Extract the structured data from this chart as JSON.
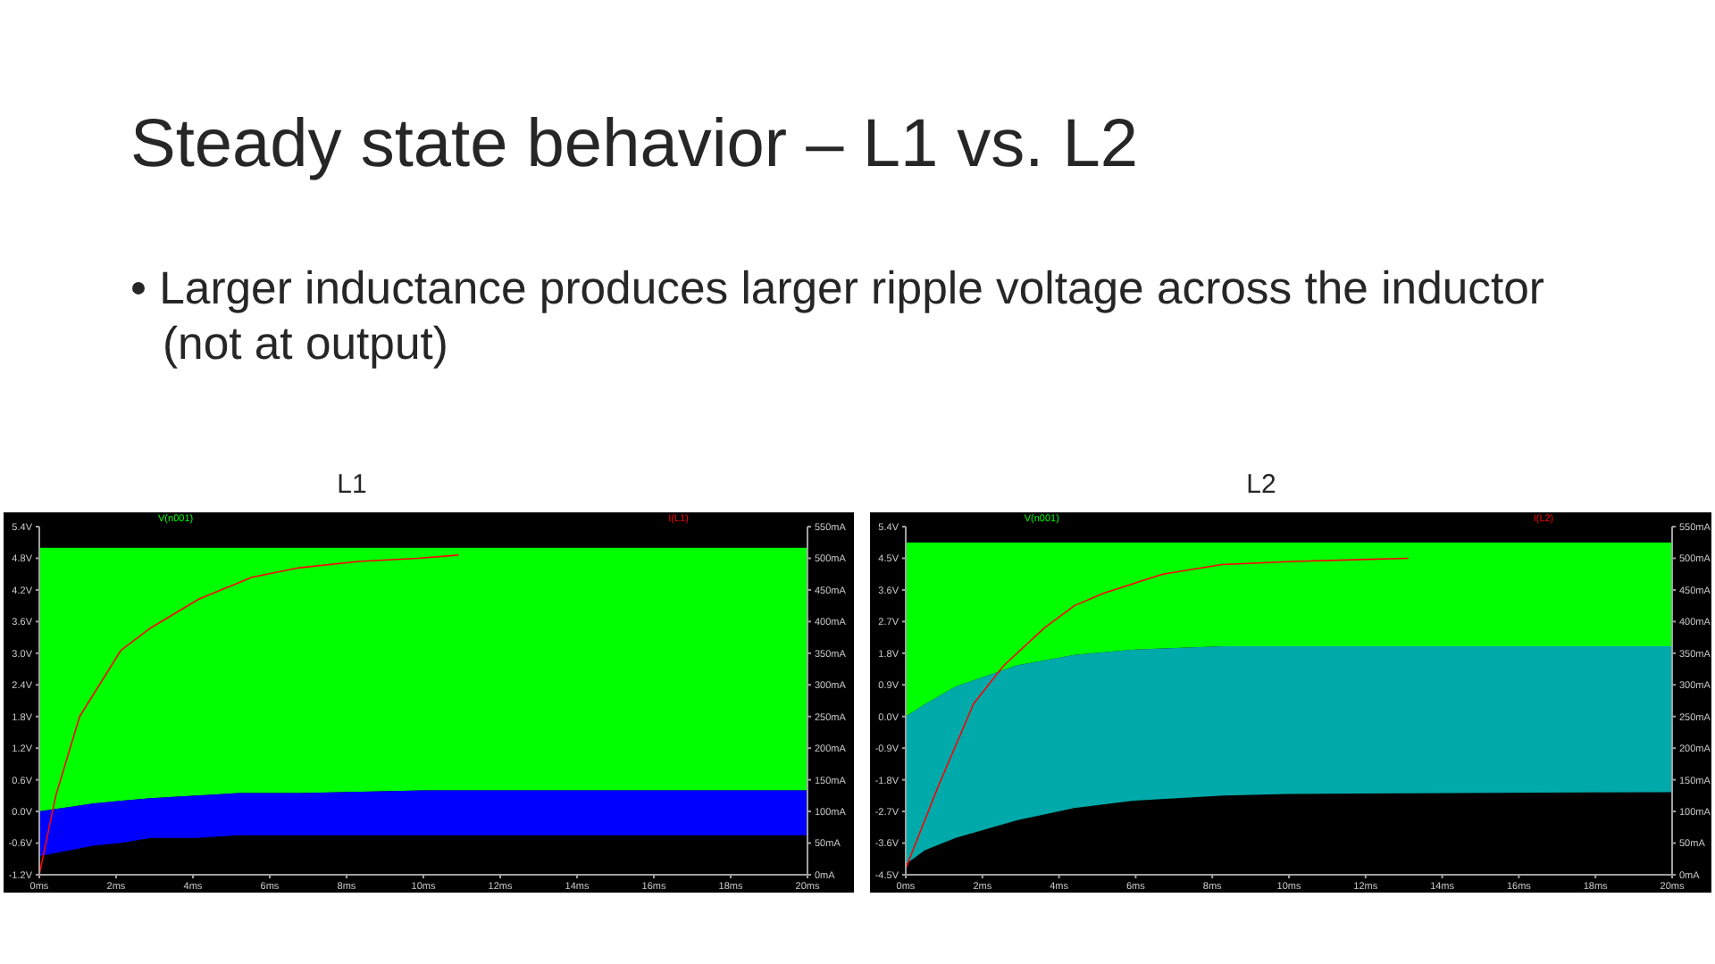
{
  "chart_data": [
    {
      "type": "other",
      "title": "Steady state behavior – L1 vs. L2",
      "annotations": [
        "• Larger inductance produces larger ripple voltage across the inductor (not at output)"
      ]
    },
    {
      "type": "line",
      "title": "L1",
      "legend": "top",
      "xlim": [
        0,
        20
      ],
      "xticks": [
        {
          "value": 0,
          "label": "0ms"
        },
        {
          "value": 2,
          "label": "2ms"
        },
        {
          "value": 4,
          "label": "4ms"
        },
        {
          "value": 6,
          "label": "6ms"
        },
        {
          "value": 8,
          "label": "8ms"
        },
        {
          "value": 10,
          "label": "10ms"
        },
        {
          "value": 12,
          "label": "12ms"
        },
        {
          "value": 14,
          "label": "14ms"
        },
        {
          "value": 16,
          "label": "16ms"
        },
        {
          "value": 18,
          "label": "18ms"
        },
        {
          "value": 20,
          "label": "20ms"
        }
      ],
      "ylim": [
        -1.2,
        5.4
      ],
      "yticks": [
        {
          "value": 5.4,
          "label": "5.4V"
        },
        {
          "value": 4.8,
          "label": "4.8V"
        },
        {
          "value": 4.2,
          "label": "4.2V"
        },
        {
          "value": 3.6,
          "label": "3.6V"
        },
        {
          "value": 3,
          "label": "3.0V"
        },
        {
          "value": 2.4,
          "label": "2.4V"
        },
        {
          "value": 1.8,
          "label": "1.8V"
        },
        {
          "value": 1.2,
          "label": "1.2V"
        },
        {
          "value": 0.6,
          "label": "0.6V"
        },
        {
          "value": 0,
          "label": "0.0V"
        },
        {
          "value": -0.6,
          "label": "-0.6V"
        },
        {
          "value": -1.2,
          "label": "-1.2V"
        }
      ],
      "y2lim": [
        0,
        550
      ],
      "y2ticks": [
        {
          "value": 550,
          "label": "550mA"
        },
        {
          "value": 500,
          "label": "500mA"
        },
        {
          "value": 450,
          "label": "450mA"
        },
        {
          "value": 400,
          "label": "400mA"
        },
        {
          "value": 350,
          "label": "350mA"
        },
        {
          "value": 300,
          "label": "300mA"
        },
        {
          "value": 250,
          "label": "250mA"
        },
        {
          "value": 200,
          "label": "200mA"
        },
        {
          "value": 150,
          "label": "150mA"
        },
        {
          "value": 100,
          "label": "100mA"
        },
        {
          "value": 50,
          "label": "50mA"
        },
        {
          "value": 0,
          "label": "0mA"
        }
      ],
      "series": [
        {
          "name": "V(n001)",
          "color": "#00ff00",
          "x": [
            0,
            1.4,
            2.1,
            2.9,
            4.1,
            5.2,
            6.8,
            10,
            20
          ],
          "values": [
            null,
            null,
            null,
            null,
            null,
            null,
            null,
            null,
            null
          ],
          "lower": [
            0,
            0.15,
            0.2,
            0.25,
            0.3,
            0.35,
            0.35,
            0.4,
            0.4
          ],
          "upper": [
            5,
            5,
            5,
            5,
            5,
            5,
            5,
            5,
            5
          ]
        },
        {
          "color": "#0000ff",
          "x": [
            0,
            1.4,
            2.1,
            2.9,
            4.1,
            5.2,
            6.8,
            10,
            20
          ],
          "values": [
            null,
            null,
            null,
            null,
            null,
            null,
            null,
            null,
            null
          ],
          "lower": [
            -0.85,
            -0.65,
            -0.6,
            -0.5,
            -0.5,
            -0.45,
            -0.45,
            -0.45,
            -0.45
          ],
          "upper": [
            0,
            0.15,
            0.2,
            0.25,
            0.3,
            0.35,
            0.35,
            0.4,
            0.4
          ]
        },
        {
          "name": "I(L1)",
          "color": "#ff0000",
          "axis": "y2",
          "x": [
            0,
            0.43,
            1.05,
            2.13,
            2.9,
            4.14,
            5.53,
            6.77,
            8.31,
            9.86,
            10.9
          ],
          "values": [
            0,
            125,
            250,
            355,
            390,
            435,
            470,
            485,
            495,
            500,
            505
          ]
        }
      ]
    },
    {
      "type": "line",
      "title": "L2",
      "legend": "top",
      "xlim": [
        0,
        20
      ],
      "xticks": [
        {
          "value": 0,
          "label": "0ms"
        },
        {
          "value": 2,
          "label": "2ms"
        },
        {
          "value": 4,
          "label": "4ms"
        },
        {
          "value": 6,
          "label": "6ms"
        },
        {
          "value": 8,
          "label": "8ms"
        },
        {
          "value": 10,
          "label": "10ms"
        },
        {
          "value": 12,
          "label": "12ms"
        },
        {
          "value": 14,
          "label": "14ms"
        },
        {
          "value": 16,
          "label": "16ms"
        },
        {
          "value": 18,
          "label": "18ms"
        },
        {
          "value": 20,
          "label": "20ms"
        }
      ],
      "ylim": [
        -4.5,
        5.4
      ],
      "yticks": [
        {
          "value": 5.4,
          "label": "5.4V"
        },
        {
          "value": 4.5,
          "label": "4.5V"
        },
        {
          "value": 3.6,
          "label": "3.6V"
        },
        {
          "value": 2.7,
          "label": "2.7V"
        },
        {
          "value": 1.8,
          "label": "1.8V"
        },
        {
          "value": 0.9,
          "label": "0.9V"
        },
        {
          "value": 0,
          "label": "0.0V"
        },
        {
          "value": -0.9,
          "label": "-0.9V"
        },
        {
          "value": -1.8,
          "label": "-1.8V"
        },
        {
          "value": -2.7,
          "label": "-2.7V"
        },
        {
          "value": -3.6,
          "label": "-3.6V"
        },
        {
          "value": -4.5,
          "label": "-4.5V"
        }
      ],
      "y2lim": [
        0,
        550
      ],
      "y2ticks": [
        {
          "value": 550,
          "label": "550mA"
        },
        {
          "value": 500,
          "label": "500mA"
        },
        {
          "value": 450,
          "label": "450mA"
        },
        {
          "value": 400,
          "label": "400mA"
        },
        {
          "value": 350,
          "label": "350mA"
        },
        {
          "value": 300,
          "label": "300mA"
        },
        {
          "value": 250,
          "label": "250mA"
        },
        {
          "value": 200,
          "label": "200mA"
        },
        {
          "value": 150,
          "label": "150mA"
        },
        {
          "value": 100,
          "label": "100mA"
        },
        {
          "value": 50,
          "label": "50mA"
        },
        {
          "value": 0,
          "label": "0mA"
        }
      ],
      "series": [
        {
          "name": "V(n001)",
          "color": "#00ff00",
          "x": [
            0,
            0.5,
            1.3,
            2.9,
            4.4,
            5.9,
            8.3,
            10,
            20
          ],
          "values": [
            null,
            null,
            null,
            null,
            null,
            null,
            null,
            null,
            null
          ],
          "lower": [
            0,
            0.35,
            0.85,
            1.45,
            1.75,
            1.9,
            2,
            2,
            2
          ],
          "upper": [
            4.95,
            4.95,
            4.95,
            4.95,
            4.95,
            4.95,
            4.95,
            4.95,
            4.95
          ]
        },
        {
          "color": "#00aaaa",
          "x": [
            0,
            0.5,
            1.3,
            2.9,
            4.4,
            5.9,
            8.3,
            10,
            20
          ],
          "values": [
            null,
            null,
            null,
            null,
            null,
            null,
            null,
            null,
            null
          ],
          "lower": [
            -4.2,
            -3.8,
            -3.45,
            -2.95,
            -2.6,
            -2.4,
            -2.25,
            -2.2,
            -2.15
          ],
          "upper": [
            0,
            0.35,
            0.85,
            1.45,
            1.75,
            1.9,
            2,
            2,
            2
          ]
        },
        {
          "name": "I(L2)",
          "color": "#ff0000",
          "axis": "y2",
          "x": [
            0,
            0.85,
            1.77,
            2.55,
            3.62,
            4.4,
            5.17,
            6.71,
            8.25,
            10.1,
            13.1
          ],
          "values": [
            10,
            140,
            270,
            330,
            390,
            425,
            445,
            475,
            490,
            495,
            500
          ]
        }
      ]
    }
  ]
}
